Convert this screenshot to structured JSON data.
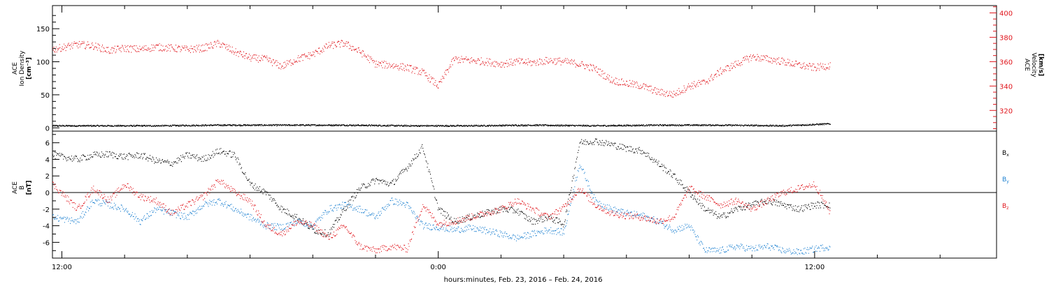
{
  "xaxis": {
    "title": "hours:minutes, Feb. 23, 2016 – Feb. 24, 2016",
    "ticks": [
      {
        "label": "12:00",
        "hour": 12
      },
      {
        "label": "0:00",
        "hour": 24
      },
      {
        "label": "12:00",
        "hour": 36
      }
    ],
    "range_hours": [
      11.7,
      41.8
    ]
  },
  "colors": {
    "black": "#000000",
    "red": "#e0141b",
    "blue": "#1a7fd0"
  },
  "chart_data": [
    {
      "type": "scatter",
      "panel": "plasma",
      "ylabel_left": [
        "ACE",
        "Ion Density",
        "[cm⁻³]"
      ],
      "ylabel_right": [
        "ACE",
        "Velocity",
        "[km/s]"
      ],
      "ylim_left": [
        -5,
        185
      ],
      "yticks_left": [
        0,
        50,
        100,
        150
      ],
      "ylim_right": [
        303,
        406
      ],
      "yticks_right": [
        320,
        340,
        360,
        380,
        400
      ],
      "series": [
        {
          "axis": "left",
          "color": "black",
          "x": [
            11.7,
            13,
            15,
            17,
            19,
            21,
            23,
            25,
            27,
            29,
            31,
            33,
            35,
            36.5
          ],
          "y": [
            3,
            3,
            3,
            4,
            4,
            4,
            3,
            3,
            4,
            3,
            4,
            4,
            3,
            6
          ]
        },
        {
          "axis": "right",
          "color": "red",
          "x": [
            11.7,
            12.5,
            13,
            13.5,
            14,
            14.5,
            15,
            15.5,
            16,
            16.5,
            17,
            17.5,
            18,
            18.5,
            19,
            19.5,
            20,
            20.5,
            21,
            21.5,
            22,
            22.5,
            23,
            23.5,
            24,
            24.5,
            25,
            25.5,
            26,
            26.5,
            27,
            27.5,
            28,
            28.5,
            29,
            29.5,
            30,
            30.5,
            31,
            31.5,
            32,
            32.5,
            33,
            33.5,
            34,
            34.5,
            35,
            35.5,
            36,
            36.5
          ],
          "y": [
            370,
            374,
            373,
            369,
            371,
            370,
            372,
            371,
            370,
            371,
            375,
            368,
            363,
            362,
            356,
            362,
            366,
            373,
            375,
            368,
            358,
            357,
            355,
            351,
            340,
            362,
            361,
            360,
            358,
            360,
            359,
            361,
            360,
            358,
            354,
            345,
            342,
            340,
            335,
            333,
            340,
            343,
            352,
            358,
            364,
            362,
            360,
            357,
            355,
            357
          ]
        }
      ]
    },
    {
      "type": "scatter",
      "panel": "magnetic",
      "ylabel_left": [
        "ACE",
        "B",
        "[nT]"
      ],
      "ylim": [
        -7.9,
        7.4
      ],
      "yticks": [
        -6,
        -4,
        -2,
        0,
        2,
        4,
        6
      ],
      "zero_line": true,
      "legend": [
        "Bx",
        "By",
        "Bz"
      ],
      "legend_placement": "right",
      "series": [
        {
          "name": "Bx",
          "color": "black",
          "x": [
            11.7,
            12.5,
            13,
            13.5,
            14,
            14.5,
            15,
            15.5,
            16,
            16.5,
            17,
            17.5,
            18,
            18.5,
            19,
            19.5,
            20,
            20.5,
            21,
            21.5,
            22,
            22.5,
            23,
            23.5,
            24,
            24.5,
            25,
            25.5,
            26,
            26.5,
            27,
            27.5,
            28,
            28.5,
            29,
            29.5,
            30,
            30.5,
            31,
            31.5,
            32,
            32.5,
            33,
            33.5,
            34,
            34.5,
            35,
            35.5,
            36,
            36.5
          ],
          "y": [
            4.5,
            4,
            4.5,
            4.6,
            4.3,
            4.5,
            3.8,
            3.5,
            4.5,
            4,
            5,
            4.5,
            1,
            0,
            -2,
            -3,
            -4.5,
            -5,
            -2,
            0.5,
            1.5,
            1,
            3,
            5.5,
            -2,
            -3.5,
            -3,
            -2.5,
            -2,
            -2.2,
            -3.5,
            -3,
            -3.8,
            6,
            6.2,
            5.8,
            5.3,
            5,
            3.5,
            2,
            0,
            -2,
            -3,
            -2,
            -1.5,
            -1,
            -1.5,
            -2,
            -1.5,
            -1.5
          ]
        },
        {
          "name": "By",
          "color": "blue",
          "x": [
            11.7,
            12.5,
            13,
            13.5,
            14,
            14.5,
            15,
            15.5,
            16,
            16.5,
            17,
            17.5,
            18,
            18.5,
            19,
            19.5,
            20,
            20.5,
            21,
            21.5,
            22,
            22.5,
            23,
            23.5,
            24,
            24.5,
            25,
            25.5,
            26,
            26.5,
            27,
            27.5,
            28,
            28.5,
            29,
            29.5,
            30,
            30.5,
            31,
            31.5,
            32,
            32.5,
            33,
            33.5,
            34,
            34.5,
            35,
            35.5,
            36,
            36.5
          ],
          "y": [
            -3,
            -3.5,
            -1,
            -1.5,
            -2,
            -3.5,
            -2,
            -2.5,
            -3,
            -1.5,
            -1,
            -2,
            -3,
            -4,
            -4.2,
            -3.5,
            -4,
            -2,
            -1.5,
            -2,
            -3,
            -1,
            -1.5,
            -4,
            -4.2,
            -4.5,
            -4.3,
            -4.6,
            -5,
            -5.5,
            -5,
            -4.5,
            -4.8,
            3.5,
            -1,
            -2,
            -2.5,
            -2.8,
            -3.5,
            -4.5,
            -4,
            -7,
            -7,
            -6.5,
            -6.8,
            -6.5,
            -7,
            -7.2,
            -6.8,
            -6.5
          ]
        },
        {
          "name": "Bz",
          "color": "red",
          "x": [
            11.7,
            12.5,
            13,
            13.5,
            14,
            14.5,
            15,
            15.5,
            16,
            16.5,
            17,
            17.5,
            18,
            18.5,
            19,
            19.5,
            20,
            20.5,
            21,
            21.5,
            22,
            22.5,
            23,
            23.5,
            24,
            24.5,
            25,
            25.5,
            26,
            26.5,
            27,
            27.5,
            28,
            28.5,
            29,
            29.5,
            30,
            30.5,
            31,
            31.5,
            32,
            32.5,
            33,
            33.5,
            34,
            34.5,
            35,
            35.5,
            36,
            36.5
          ],
          "y": [
            1,
            -2,
            0.5,
            -1,
            1,
            -0.5,
            -1,
            -2.5,
            -1.5,
            -0.5,
            1.5,
            0,
            -1,
            -4,
            -5,
            -3.5,
            -4,
            -5.5,
            -4,
            -6.5,
            -7,
            -6.5,
            -6.8,
            -1.5,
            -3.8,
            -3.5,
            -3,
            -2.5,
            -2,
            -1,
            -2,
            -3,
            -1.8,
            0.5,
            -1.5,
            -2.5,
            -2.8,
            -3,
            -3.5,
            -3,
            0.5,
            -0.5,
            -1.5,
            -1,
            -2,
            -1,
            0,
            0.5,
            1,
            -2.5
          ]
        }
      ]
    }
  ]
}
